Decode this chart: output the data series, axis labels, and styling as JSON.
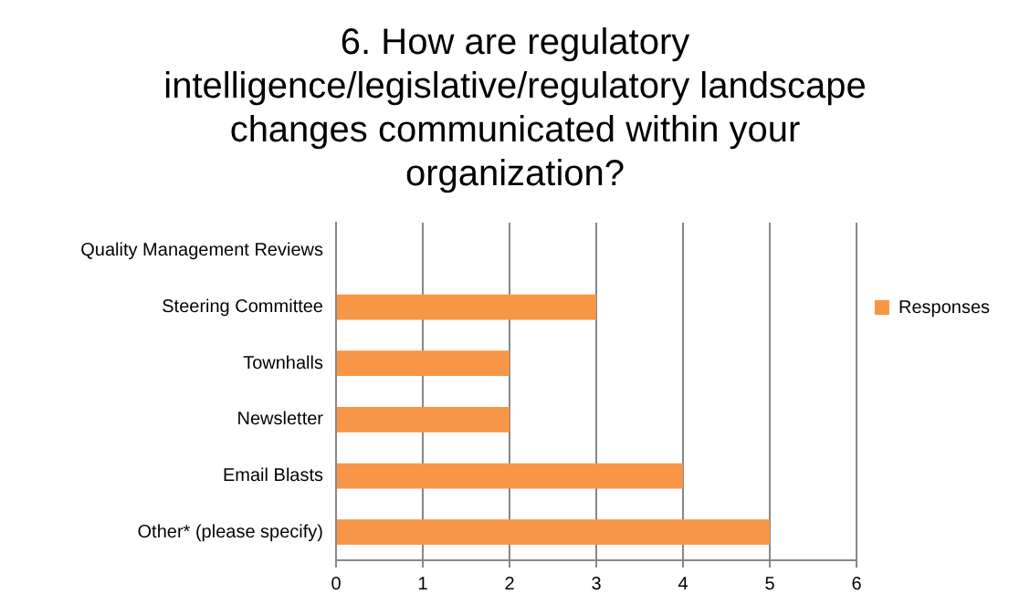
{
  "chart_data": {
    "type": "bar",
    "orientation": "horizontal",
    "title": "6. How are regulatory\nintelligence/legislative/regulatory landscape\nchanges communicated within your\norganization?",
    "categories": [
      "Quality Management Reviews",
      "Steering Committee",
      "Townhalls",
      "Newsletter",
      "Email Blasts",
      "Other* (please specify)"
    ],
    "series": [
      {
        "name": "Responses",
        "color": "#f79646",
        "values": [
          0,
          3,
          2,
          2,
          4,
          5
        ]
      }
    ],
    "xlim": [
      0,
      6
    ],
    "xticks": [
      0,
      1,
      2,
      3,
      4,
      5,
      6
    ],
    "grid": "x",
    "legend": "right"
  }
}
